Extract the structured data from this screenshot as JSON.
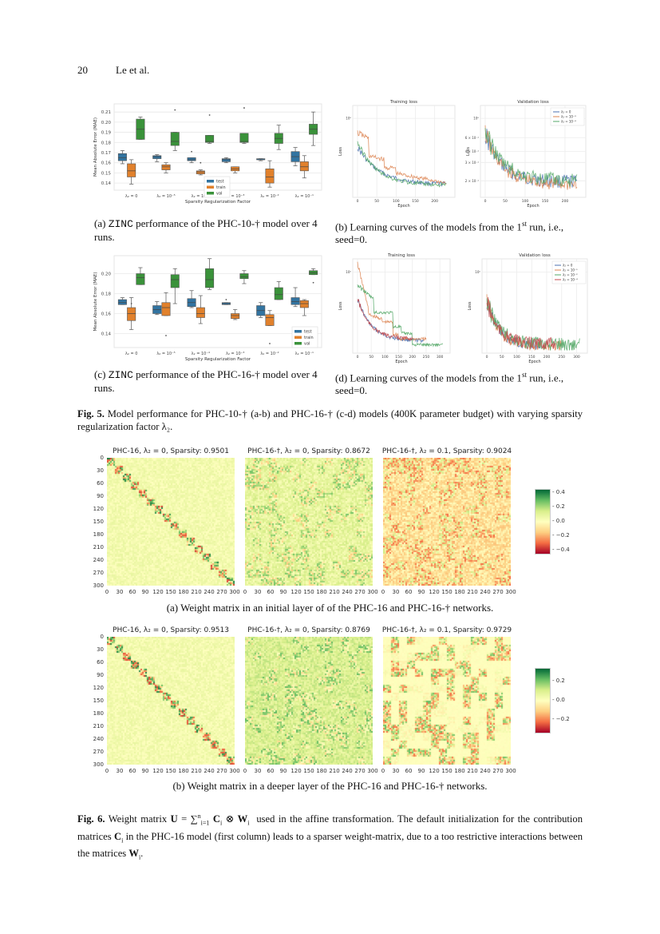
{
  "header": {
    "page_number": "20",
    "authors": "Le et al."
  },
  "fig5": {
    "subfigs": {
      "a": {
        "caption_prefix": "(a) ",
        "caption_mono": "ZINC",
        "caption_rest": " performance of the PHC-10-† model over 4 runs."
      },
      "b": {
        "caption": "(b) Learning curves of the models from the 1st run, i.e., seed=0."
      },
      "c": {
        "caption_prefix": "(c) ",
        "caption_mono": "ZINC",
        "caption_rest": " performance of the PHC-16-† model over 4 runs."
      },
      "d": {
        "caption": "(d) Learning curves of the models from the 1st run, i.e., seed=0."
      }
    },
    "label": "Fig. 5.",
    "caption": "Model performance for PHC-10-† (a-b) and PHC-16-† (c-d) models (400K parameter budget) with varying sparsity regularization factor λ₂."
  },
  "fig6": {
    "row_a_caption": "(a) Weight matrix in an initial layer of of the PHC-16 and PHC-16-† networks.",
    "row_b_caption": "(b) Weight matrix in a deeper layer of the PHC-16 and PHC-16-† networks.",
    "label": "Fig. 6.",
    "caption": "Weight matrix U = ∑ⁿᵢ₌₁ Cᵢ ⊗ Wᵢ  used in the affine transformation. The default initialization for the contribution matrices Cᵢ in the PHC-16 model (first column) leads to a sparser weight-matrix, due to a too restrictive interactions between the matrices Wᵢ.",
    "row_a_titles": [
      "PHC-16, λ₂ = 0, Sparsity: 0.9501",
      "PHC-16-†, λ₂ = 0, Sparsity: 0.8672",
      "PHC-16-†, λ₂ = 0.1, Sparsity: 0.9024"
    ],
    "row_b_titles": [
      "PHC-16, λ₂ = 0, Sparsity: 0.9513",
      "PHC-16-†, λ₂ = 0, Sparsity: 0.8769",
      "PHC-16-†, λ₂ = 0.1, Sparsity: 0.9729"
    ],
    "axis_ticks": [
      "0",
      "30",
      "60",
      "90",
      "120",
      "150",
      "180",
      "210",
      "240",
      "270",
      "300"
    ],
    "colorbar_a_ticks": [
      "0.4",
      "0.2",
      "0.0",
      "−0.2",
      "−0.4"
    ],
    "colorbar_b_ticks": [
      "0.2",
      "0.0",
      "−0.2"
    ]
  },
  "chart_data": [
    {
      "id": "fig5a",
      "type": "box",
      "title": "",
      "xlabel": "Sparsity Regularization Factor",
      "ylabel": "Mean Absolute Error (MAE)",
      "categories": [
        "λ₂ = 0",
        "λ₂ = 10⁻⁵",
        "λ₂ = 10⁻⁴",
        "λ₂ = 10⁻³",
        "λ₂ = 10⁻²",
        "λ₂ = 10⁻¹"
      ],
      "yticks": [
        "0.14",
        "0.15",
        "0.16",
        "0.17",
        "0.18",
        "0.19",
        "0.20",
        "0.21"
      ],
      "ylim": [
        0.133,
        0.218
      ],
      "legend": [
        "test",
        "train",
        "val"
      ],
      "legend_position": "lower center",
      "colors": {
        "test": "#3274a1",
        "train": "#e1812c",
        "val": "#3a923a"
      },
      "series": [
        {
          "name": "test",
          "boxes": [
            {
              "min": 0.159,
              "q1": 0.162,
              "median": 0.165,
              "q3": 0.169,
              "max": 0.172
            },
            {
              "min": 0.161,
              "q1": 0.164,
              "median": 0.166,
              "q3": 0.167,
              "max": 0.168
            },
            {
              "min": 0.16,
              "q1": 0.162,
              "median": 0.163,
              "q3": 0.165,
              "max": 0.165,
              "outliers": [
                0.171
              ]
            },
            {
              "min": 0.16,
              "q1": 0.161,
              "median": 0.163,
              "q3": 0.164,
              "max": 0.165
            },
            {
              "min": 0.162,
              "q1": 0.163,
              "median": 0.163,
              "q3": 0.164,
              "max": 0.164
            },
            {
              "min": 0.157,
              "q1": 0.161,
              "median": 0.166,
              "q3": 0.171,
              "max": 0.175
            }
          ]
        },
        {
          "name": "train",
          "boxes": [
            {
              "min": 0.139,
              "q1": 0.146,
              "median": 0.152,
              "q3": 0.159,
              "max": 0.163
            },
            {
              "min": 0.15,
              "q1": 0.153,
              "median": 0.156,
              "q3": 0.158,
              "max": 0.16
            },
            {
              "min": 0.148,
              "q1": 0.149,
              "median": 0.151,
              "q3": 0.152,
              "max": 0.153,
              "outliers": [
                0.16
              ]
            },
            {
              "min": 0.15,
              "q1": 0.152,
              "median": 0.154,
              "q3": 0.156,
              "max": 0.156
            },
            {
              "min": 0.136,
              "q1": 0.14,
              "median": 0.146,
              "q3": 0.154,
              "max": 0.162
            },
            {
              "min": 0.145,
              "q1": 0.152,
              "median": 0.156,
              "q3": 0.161,
              "max": 0.167
            }
          ]
        },
        {
          "name": "val",
          "boxes": [
            {
              "min": 0.183,
              "q1": 0.183,
              "median": 0.193,
              "q3": 0.203,
              "max": 0.205
            },
            {
              "min": 0.172,
              "q1": 0.177,
              "median": 0.181,
              "q3": 0.19,
              "max": 0.19,
              "outliers": [
                0.212
              ]
            },
            {
              "min": 0.179,
              "q1": 0.18,
              "median": 0.181,
              "q3": 0.187,
              "max": 0.187,
              "outliers": [
                0.207
              ]
            },
            {
              "min": 0.179,
              "q1": 0.18,
              "median": 0.181,
              "q3": 0.189,
              "max": 0.189,
              "outliers": [
                0.214
              ]
            },
            {
              "min": 0.173,
              "q1": 0.179,
              "median": 0.184,
              "q3": 0.189,
              "max": 0.197
            },
            {
              "min": 0.177,
              "q1": 0.188,
              "median": 0.193,
              "q3": 0.198,
              "max": 0.21
            }
          ]
        }
      ]
    },
    {
      "id": "fig5b",
      "type": "line",
      "subplots": [
        {
          "title": "Training loss",
          "xlabel": "Epoch",
          "ylabel": "Loss",
          "yscale": "log",
          "xticks": [
            "0",
            "50",
            "100",
            "150",
            "200"
          ],
          "yticks": [
            "10⁰"
          ]
        },
        {
          "title": "Validation loss",
          "xlabel": "Epoch",
          "ylabel": "Loss",
          "yscale": "log",
          "xticks": [
            "0",
            "50",
            "100",
            "150",
            "200"
          ],
          "yticks": [
            "10⁰",
            "6 × 10⁻¹",
            "4 × 10⁻¹",
            "3 × 10⁻¹",
            "2 × 10⁻¹"
          ]
        }
      ],
      "legend": [
        "λ₂ = 0",
        "λ₂ = 10⁻³",
        "λ₂ = 10⁻⁴"
      ],
      "colors": [
        "#4c72b0",
        "#dd8452",
        "#55a868"
      ],
      "legend_position": "upper right",
      "grid": true
    },
    {
      "id": "fig5c",
      "type": "box",
      "xlabel": "Sparsity Regularization Factor",
      "ylabel": "Mean Absolute Error (MAE)",
      "categories": [
        "λ₂ = 0",
        "λ₂ = 10⁻⁵",
        "λ₂ = 10⁻⁴",
        "λ₂ = 10⁻³",
        "λ₂ = 10⁻²",
        "λ₂ = 10⁻¹"
      ],
      "yticks": [
        "0.14",
        "0.16",
        "0.18",
        "0.20"
      ],
      "ylim": [
        0.126,
        0.218
      ],
      "legend": [
        "test",
        "train",
        "val"
      ],
      "legend_position": "lower right",
      "colors": {
        "test": "#3274a1",
        "train": "#e1812c",
        "val": "#3a923a"
      },
      "series": [
        {
          "name": "test",
          "boxes": [
            {
              "min": 0.169,
              "q1": 0.169,
              "median": 0.171,
              "q3": 0.174,
              "max": 0.176
            },
            {
              "min": 0.159,
              "q1": 0.16,
              "median": 0.164,
              "q3": 0.168,
              "max": 0.172
            },
            {
              "min": 0.166,
              "q1": 0.167,
              "median": 0.171,
              "q3": 0.175,
              "max": 0.183
            },
            {
              "min": 0.169,
              "q1": 0.169,
              "median": 0.17,
              "q3": 0.171,
              "max": 0.171,
              "outliers": [
                0.174
              ]
            },
            {
              "min": 0.156,
              "q1": 0.158,
              "median": 0.163,
              "q3": 0.168,
              "max": 0.171
            },
            {
              "min": 0.167,
              "q1": 0.169,
              "median": 0.172,
              "q3": 0.176,
              "max": 0.186
            }
          ]
        },
        {
          "name": "train",
          "boxes": [
            {
              "min": 0.144,
              "q1": 0.153,
              "median": 0.16,
              "q3": 0.166,
              "max": 0.176,
              "outliers": [
                0.17
              ]
            },
            {
              "min": 0.158,
              "q1": 0.158,
              "median": 0.166,
              "q3": 0.171,
              "max": 0.181,
              "outliers": [
                0.138
              ]
            },
            {
              "min": 0.15,
              "q1": 0.156,
              "median": 0.16,
              "q3": 0.166,
              "max": 0.178
            },
            {
              "min": 0.154,
              "q1": 0.155,
              "median": 0.158,
              "q3": 0.16,
              "max": 0.164
            },
            {
              "min": 0.148,
              "q1": 0.148,
              "median": 0.156,
              "q3": 0.159,
              "max": 0.163,
              "outliers": [
                0.13
              ]
            },
            {
              "min": 0.158,
              "q1": 0.166,
              "median": 0.17,
              "q3": 0.173,
              "max": 0.174
            }
          ]
        },
        {
          "name": "val",
          "boxes": [
            {
              "min": 0.189,
              "q1": 0.189,
              "median": 0.196,
              "q3": 0.2,
              "max": 0.206
            },
            {
              "min": 0.17,
              "q1": 0.186,
              "median": 0.194,
              "q3": 0.199,
              "max": 0.205
            },
            {
              "min": 0.184,
              "q1": 0.186,
              "median": 0.194,
              "q3": 0.205,
              "max": 0.215
            },
            {
              "min": 0.19,
              "q1": 0.195,
              "median": 0.197,
              "q3": 0.2,
              "max": 0.203
            },
            {
              "min": 0.174,
              "q1": 0.174,
              "median": 0.179,
              "q3": 0.186,
              "max": 0.192
            },
            {
              "min": 0.199,
              "q1": 0.199,
              "median": 0.201,
              "q3": 0.203,
              "max": 0.205,
              "outliers": [
                0.191
              ]
            }
          ]
        }
      ]
    },
    {
      "id": "fig5d",
      "type": "line",
      "subplots": [
        {
          "title": "Training loss",
          "xlabel": "Epoch",
          "ylabel": "Loss",
          "yscale": "log",
          "xticks": [
            "0",
            "50",
            "100",
            "150",
            "200",
            "250",
            "300"
          ],
          "yticks": [
            "10⁰"
          ]
        },
        {
          "title": "Validation loss",
          "xlabel": "Epoch",
          "ylabel": "Loss",
          "yscale": "log",
          "xticks": [
            "0",
            "50",
            "100",
            "150",
            "200",
            "250",
            "300"
          ],
          "yticks": [
            "10⁰"
          ]
        }
      ],
      "legend": [
        "λ₂ = 0",
        "λ₂ = 10⁻¹",
        "λ₂ = 10⁻²",
        "λ₂ = 10⁻⁴"
      ],
      "colors": [
        "#4c72b0",
        "#dd8452",
        "#55a868",
        "#c44e52"
      ],
      "legend_position": "upper right",
      "grid": true
    },
    {
      "id": "fig6",
      "type": "heatmap",
      "rows": [
        {
          "titles": [
            "PHC-16, λ₂ = 0, Sparsity: 0.9501",
            "PHC-16-†, λ₂ = 0, Sparsity: 0.8672",
            "PHC-16-†, λ₂ = 0.1, Sparsity: 0.9024"
          ],
          "colorbar": {
            "cmap": "RdYlGn",
            "ticks": [
              0.4,
              0.2,
              0.0,
              -0.2,
              -0.4
            ]
          }
        },
        {
          "titles": [
            "PHC-16, λ₂ = 0, Sparsity: 0.9513",
            "PHC-16-†, λ₂ = 0, Sparsity: 0.8769",
            "PHC-16-†, λ₂ = 0.1, Sparsity: 0.9729"
          ],
          "colorbar": {
            "cmap": "RdYlGn",
            "ticks": [
              0.2,
              0.0,
              -0.2
            ]
          }
        }
      ],
      "xticks": [
        0,
        30,
        60,
        90,
        120,
        150,
        180,
        210,
        240,
        270,
        300
      ],
      "yticks": [
        0,
        30,
        60,
        90,
        120,
        150,
        180,
        210,
        240,
        270,
        300
      ]
    }
  ]
}
